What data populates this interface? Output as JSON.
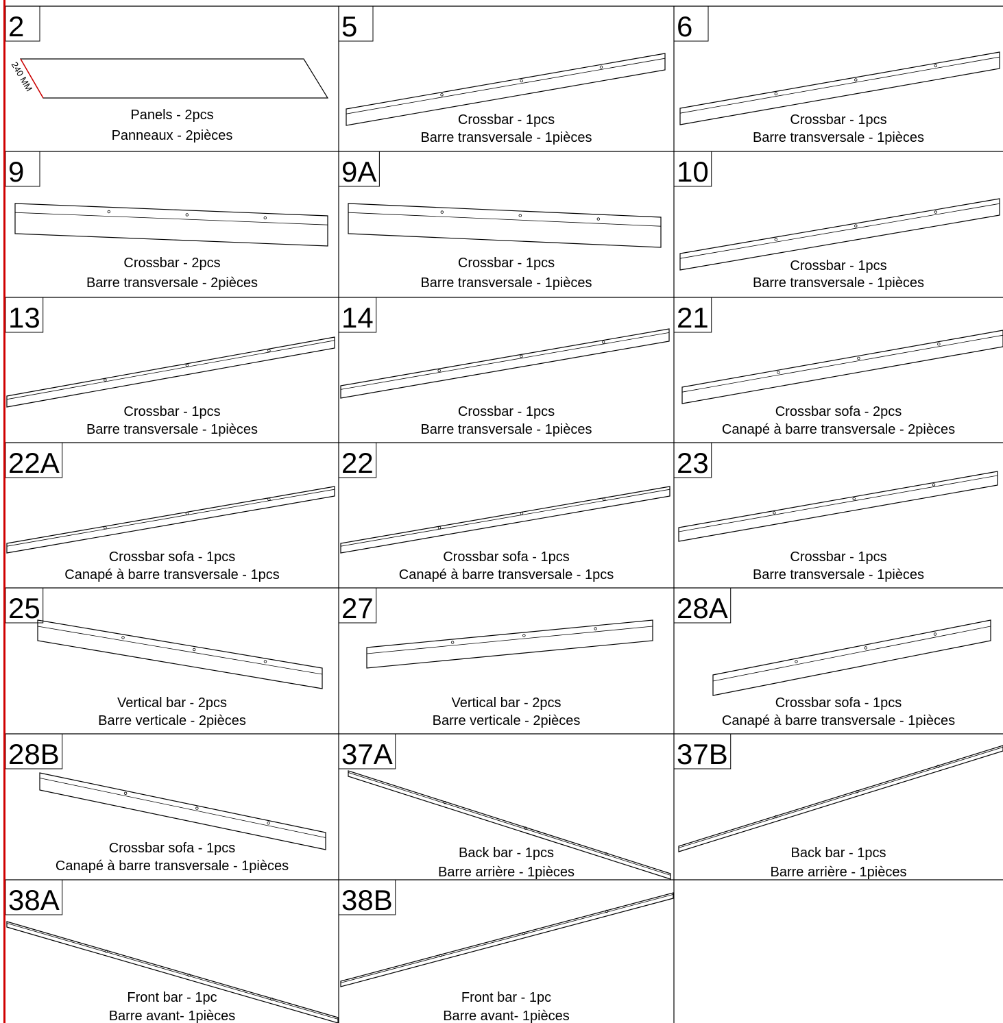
{
  "cells": [
    {
      "number": "2",
      "lines": [
        "Panels - 2pcs",
        "Panneaux - 2pièces"
      ],
      "dimension": "240 MM"
    },
    {
      "number": "5",
      "lines": [
        "Crossbar - 1pcs",
        "Barre transversale - 1pièces"
      ]
    },
    {
      "number": "6",
      "lines": [
        "Crossbar - 1pcs",
        "Barre transversale - 1pièces"
      ]
    },
    {
      "number": "9",
      "lines": [
        "Crossbar - 2pcs",
        "Barre transversale - 2pièces"
      ]
    },
    {
      "number": "9A",
      "lines": [
        "Crossbar - 1pcs",
        "Barre transversale - 1pièces"
      ]
    },
    {
      "number": "10",
      "lines": [
        "Crossbar - 1pcs",
        "Barre transversale - 1pièces"
      ]
    },
    {
      "number": "13",
      "lines": [
        "Crossbar - 1pcs",
        "Barre transversale - 1pièces"
      ]
    },
    {
      "number": "14",
      "lines": [
        "Crossbar - 1pcs",
        "Barre transversale - 1pièces"
      ]
    },
    {
      "number": "21",
      "lines": [
        "Crossbar sofa - 2pcs",
        "Canapé à barre transversale - 2pièces"
      ]
    },
    {
      "number": "22A",
      "lines": [
        "Crossbar sofa - 1pcs",
        "Canapé à barre transversale - 1pcs"
      ]
    },
    {
      "number": "22",
      "lines": [
        "Crossbar sofa - 1pcs",
        "Canapé à barre transversale - 1pcs"
      ]
    },
    {
      "number": "23",
      "lines": [
        "Crossbar - 1pcs",
        "Barre transversale - 1pièces"
      ]
    },
    {
      "number": "25",
      "lines": [
        "Vertical bar - 2pcs",
        "Barre verticale - 2pièces"
      ]
    },
    {
      "number": "27",
      "lines": [
        "Vertical bar - 2pcs",
        "Barre verticale - 2pièces"
      ]
    },
    {
      "number": "28A",
      "lines": [
        "Crossbar sofa - 1pcs",
        "Canapé à barre transversale - 1pièces"
      ]
    },
    {
      "number": "28B",
      "lines": [
        "Crossbar sofa - 1pcs",
        "Canapé à barre transversale - 1pièces"
      ]
    },
    {
      "number": "37A",
      "lines": [
        "Back bar - 1pcs",
        "Barre arrière - 1pièces"
      ]
    },
    {
      "number": "37B",
      "lines": [
        "Back bar - 1pcs",
        "Barre arrière - 1pièces"
      ]
    },
    {
      "number": "38A",
      "lines": [
        "Front bar - 1pc",
        "Barre avant- 1pièces"
      ]
    },
    {
      "number": "38B",
      "lines": [
        "Front bar - 1pc",
        "Barre avant- 1pièces"
      ]
    }
  ]
}
